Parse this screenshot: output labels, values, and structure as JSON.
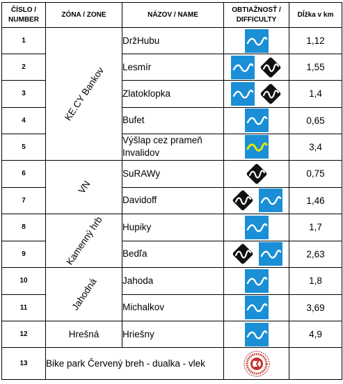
{
  "headers": {
    "number": [
      "ČÍSLO /",
      "NUMBER"
    ],
    "zone": "ZÓNA / ZONE",
    "name": "NÁZOV / NAME",
    "difficulty": [
      "OBTIAŽNOSŤ /",
      "DIFFICULTY"
    ],
    "length": "Dĺžka v km"
  },
  "zones": {
    "kecy": "KE.CY Bankov",
    "vn": "VN",
    "kamenny": "Kamenný hrb",
    "jahodna": "Jahodná",
    "hresna": "Hrešná"
  },
  "colors": {
    "blue": "#1a8fd6",
    "black": "#111111",
    "yellow": "#e6e600",
    "bike_red": "#c0302a"
  },
  "rows": [
    {
      "num": "1",
      "name": "DržHubu",
      "icons": [
        "blue-wave-icon"
      ],
      "length": "1,12"
    },
    {
      "num": "2",
      "name": "Lesmír",
      "icons": [
        "blue-wave-icon",
        "black-diamond-icon"
      ],
      "length": "1,55"
    },
    {
      "num": "3",
      "name": "Zlatoklopka",
      "icons": [
        "blue-wave-icon",
        "black-diamond-icon"
      ],
      "length": "1,4"
    },
    {
      "num": "4",
      "name": "Bufet",
      "icons": [
        "blue-wave-icon"
      ],
      "length": "0,65"
    },
    {
      "num": "5",
      "name_line1": "Výšlap cez prameň",
      "name_line2": "Invalidov",
      "icons": [
        "yellow-wave-icon"
      ],
      "length": "3,4"
    },
    {
      "num": "6",
      "name": "SuRAWy",
      "icons": [
        "black-diamond-icon"
      ],
      "length": "0,75"
    },
    {
      "num": "7",
      "name": "Davidoff",
      "icons": [
        "black-diamond-icon",
        "blue-wave-icon"
      ],
      "length": "1,46"
    },
    {
      "num": "8",
      "name": "Hupiky",
      "icons": [
        "blue-wave-icon"
      ],
      "length": "1,7"
    },
    {
      "num": "9",
      "name": "Bedľa",
      "icons": [
        "black-diamond-icon",
        "blue-wave-icon"
      ],
      "length": "2,63"
    },
    {
      "num": "10",
      "name": "Jahoda",
      "icons": [
        "blue-wave-icon"
      ],
      "length": "1,8"
    },
    {
      "num": "11",
      "name": "Michalkov",
      "icons": [
        "blue-wave-icon"
      ],
      "length": "3,69"
    },
    {
      "num": "12",
      "name": "Hriešny",
      "icons": [
        "blue-wave-icon"
      ],
      "length": "4,9"
    },
    {
      "num": "13",
      "name": "Bike park Červený breh - dualka - vlek",
      "icons": [
        "bikepark-logo-icon"
      ],
      "length": ""
    }
  ]
}
